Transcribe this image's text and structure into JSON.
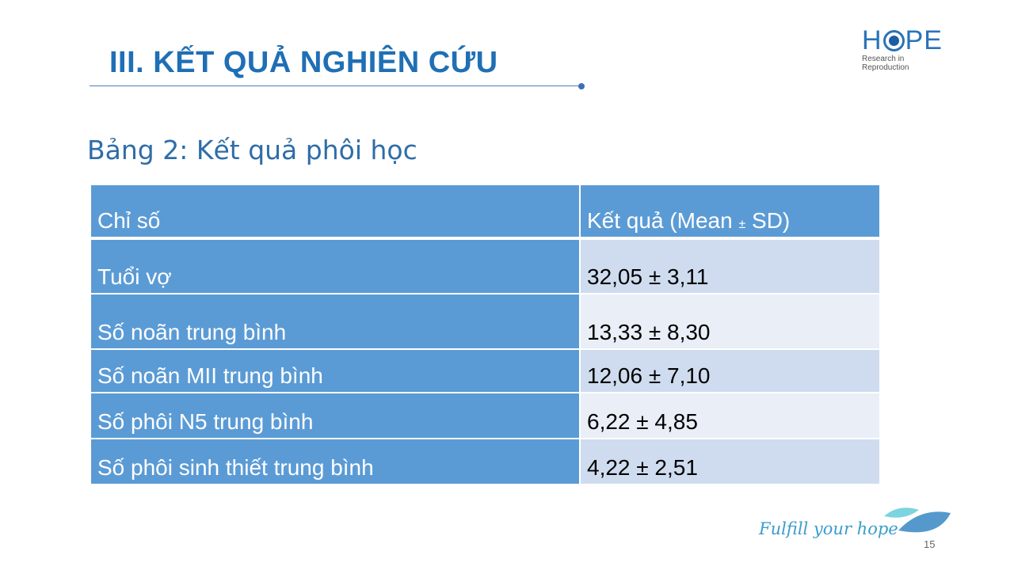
{
  "slide": {
    "title": "III. KẾT QUẢ NGHIÊN CỨU",
    "caption": "Bảng 2: Kết quả phôi học",
    "page_number": "15",
    "slogan": "Fulfill your hope"
  },
  "logo": {
    "letter_h": "H",
    "letters_pe": "PE",
    "subtitle": "Research in Reproduction",
    "text": "HOPE"
  },
  "table": {
    "headers": [
      "Chỉ số",
      "Kết quả (Mean ",
      "±",
      " SD)"
    ],
    "rows": [
      [
        "Tuổi vợ",
        "32,05 ± 3,11"
      ],
      [
        "Số noãn trung bình",
        "13,33 ± 8,30"
      ],
      [
        "Số noãn MII trung bình",
        "12,06 ± 7,10"
      ],
      [
        "Số phôi N5 trung bình",
        "6,22 ± 4,85"
      ],
      [
        "Số phôi sinh thiết trung bình",
        "4,22 ± 2,51"
      ]
    ]
  },
  "colors": {
    "accent": "#1f6fb5",
    "table_header": "#5b9bd5",
    "row_dark": "#cfdcef",
    "row_light": "#e9eef7"
  }
}
